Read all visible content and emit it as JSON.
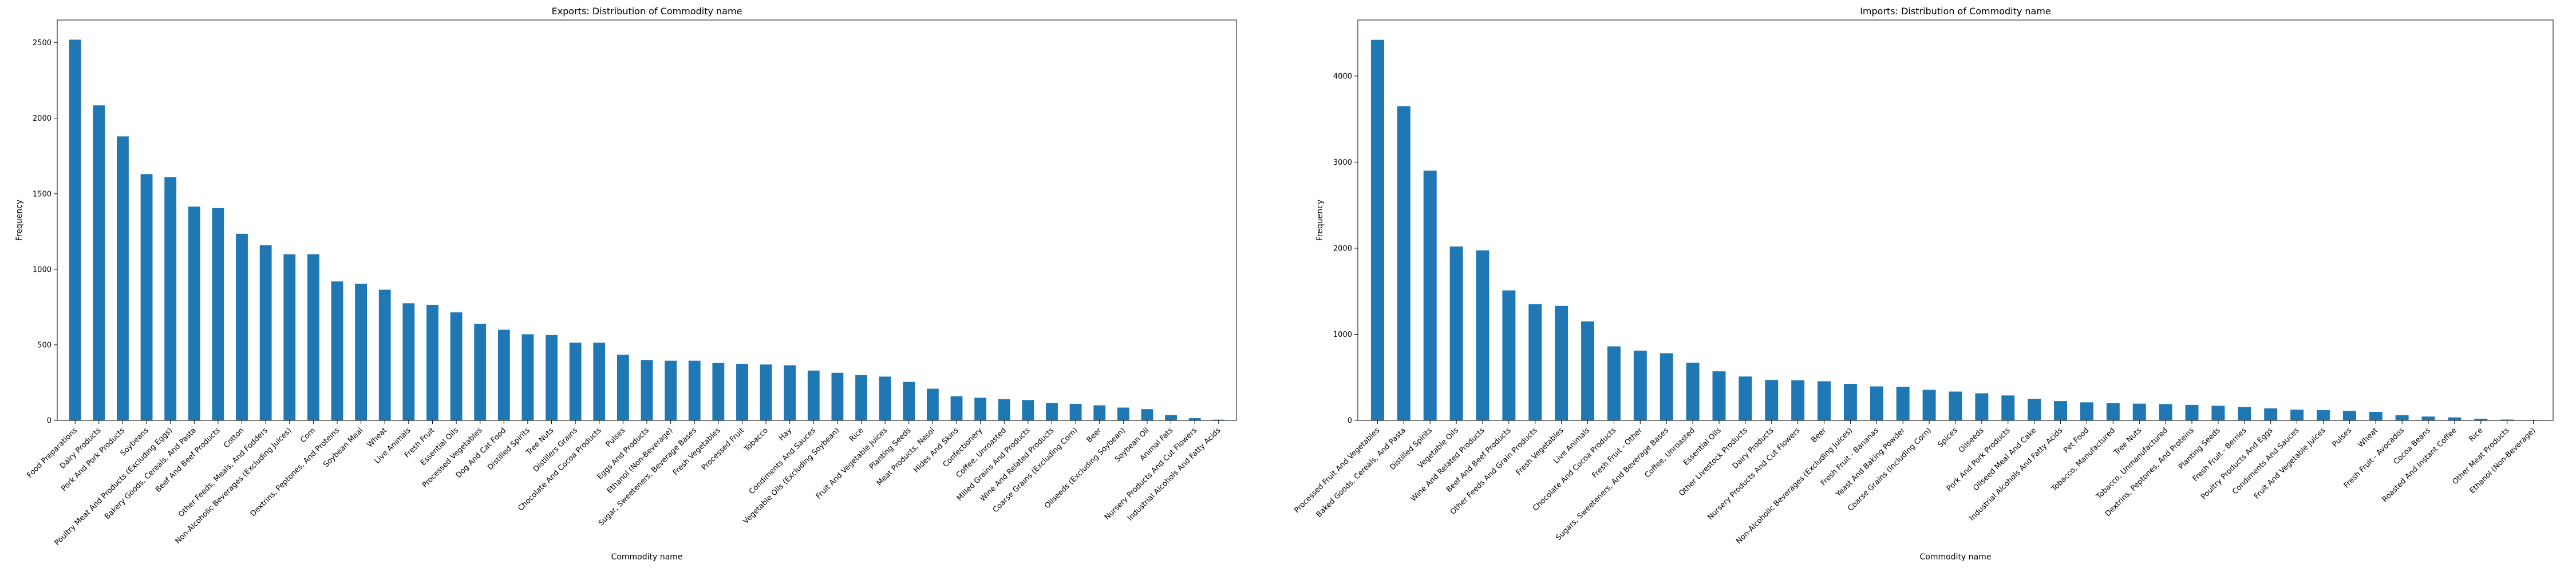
{
  "chart_data": [
    {
      "type": "bar",
      "title": "Exports: Distribution of Commodity name",
      "xlabel": "Commodity name",
      "ylabel": "Frequency",
      "ylim": [
        0,
        2650
      ],
      "yticks": [
        0,
        500,
        1000,
        1500,
        2000,
        2500
      ],
      "bar_color": "#1f77b4",
      "grid": false,
      "categories": [
        "Food Preparations",
        "Dairy Products",
        "Pork And Pork Products",
        "Soybeans",
        "Poultry Meat And Products (Excluding Eggs)",
        "Bakery Goods, Cereals, And Pasta",
        "Beef And Beef Products",
        "Cotton",
        "Other Feeds, Meals, And Fodders",
        "Non-Alcoholic Beverages (Excluding Juices)",
        "Corn",
        "Dextrins, Peptones, And Proteins",
        "Soybean Meal",
        "Wheat",
        "Live Animals",
        "Fresh Fruit",
        "Essential Oils",
        "Processed Vegetables",
        "Dog And Cat Food",
        "Distilled Spirits",
        "Tree Nuts",
        "Distillers Grains",
        "Chocolate And Cocoa Products",
        "Pulses",
        "Eggs And Products",
        "Ethanol (Non-Beverage)",
        "Sugar, Sweeteners, Beverage Bases",
        "Fresh Vegetables",
        "Processed Fruit",
        "Tobacco",
        "Hay",
        "Condiments And Sauces",
        "Vegetable Oils (Excluding Soybean)",
        "Rice",
        "Fruit And Vegetable Juices",
        "Planting Seeds",
        "Meat Products, Nesoi",
        "Hides And Skins",
        "Confectionery",
        "Coffee, Unroasted",
        "Milled Grains And Products",
        "Wine And Related Products",
        "Coarse Grains (Excluding Corn)",
        "Beer",
        "Oilseeds (Excluding Soybean)",
        "Soybean Oil",
        "Animal Fats",
        "Nursery Products And Cut Flowers",
        "Industrial Alcohols And Fatty Acids"
      ],
      "values": [
        2520,
        2085,
        1880,
        1630,
        1610,
        1415,
        1405,
        1235,
        1160,
        1100,
        1100,
        920,
        905,
        865,
        775,
        765,
        715,
        640,
        600,
        570,
        565,
        515,
        515,
        435,
        400,
        395,
        395,
        380,
        375,
        370,
        365,
        330,
        315,
        300,
        290,
        255,
        210,
        160,
        150,
        140,
        135,
        115,
        110,
        100,
        85,
        75,
        35,
        15,
        5
      ]
    },
    {
      "type": "bar",
      "title": "Imports: Distribution of Commodity name",
      "xlabel": "Commodity name",
      "ylabel": "Frequency",
      "ylim": [
        0,
        4650
      ],
      "yticks": [
        0,
        1000,
        2000,
        3000,
        4000
      ],
      "bar_color": "#1f77b4",
      "grid": false,
      "categories": [
        "Processed Fruit And Vegetables",
        "Baked Goods, Cereals, And Pasta",
        "Distilled Spirits",
        "Vegetable Oils",
        "Wine And Related Products",
        "Beef And Beef Products",
        "Other Feeds And Grain Products",
        "Fresh Vegetables",
        "Live Animals",
        "Chocolate And Cocoa Products",
        "Fresh Fruit - Other",
        "Sugars, Sweeteners, And Beverage Bases",
        "Coffee, Unroasted",
        "Essential Oils",
        "Other Livestock Products",
        "Dairy Products",
        "Nursery Products And Cut Flowers",
        "Beer",
        "Non-Alcoholic Beverages (Excluding Juices)",
        "Fresh Fruit - Bananas",
        "Yeast And Baking Powder",
        "Coarse Grains (Including Corn)",
        "Spices",
        "Oilseeds",
        "Pork And Pork Products",
        "Oilseed Meal And Cake",
        "Industrial Alcohols And Fatty Acids",
        "Pet Food",
        "Tobacco, Manufactured",
        "Tree Nuts",
        "Tobacco, Unmanufactured",
        "Dextrins, Peptones, And Proteins",
        "Planting Seeds",
        "Fresh Fruit - Berries",
        "Poultry Products And Eggs",
        "Condiments And Sauces",
        "Fruit And Vegetable Juices",
        "Pulses",
        "Wheat",
        "Fresh Fruit - Avocados",
        "Cocoa Beans",
        "Roasted And Instant Coffee",
        "Rice",
        "Other Meat Products",
        "Ethanol (Non-Beverage)"
      ],
      "values": [
        4420,
        3650,
        2900,
        2020,
        1975,
        1510,
        1350,
        1330,
        1150,
        860,
        810,
        780,
        670,
        570,
        510,
        470,
        465,
        455,
        425,
        395,
        390,
        355,
        335,
        315,
        290,
        250,
        225,
        210,
        200,
        195,
        190,
        180,
        170,
        155,
        140,
        125,
        120,
        110,
        100,
        60,
        45,
        35,
        20,
        10,
        5
      ]
    }
  ]
}
